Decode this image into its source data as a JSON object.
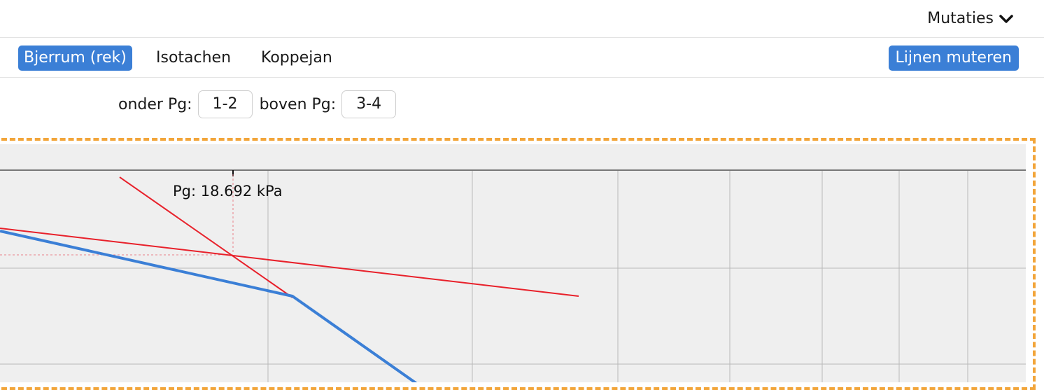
{
  "header": {
    "menu_label": "Mutaties",
    "menu_icon": "chevron-down-icon"
  },
  "tabs": [
    {
      "label": "Bjerrum (rek)",
      "active": true
    },
    {
      "label": "Isotachen",
      "active": false
    },
    {
      "label": "Koppejan",
      "active": false
    }
  ],
  "actions": {
    "mutate_lines_label": "Lijnen muteren"
  },
  "pg_selection": {
    "below_label": "onder Pg:",
    "below_value": "1-2",
    "above_label": "boven Pg:",
    "above_value": "3-4"
  },
  "chart_data": {
    "type": "line",
    "pg_annotation": "Pg: 18.692 kPa",
    "colors": {
      "background": "#efefef",
      "grid": "#b9b9b9",
      "measured_series": "#3b7fd6",
      "fit_lines": "#e8202a",
      "frame": "#f2a53a"
    },
    "grid": true
  }
}
